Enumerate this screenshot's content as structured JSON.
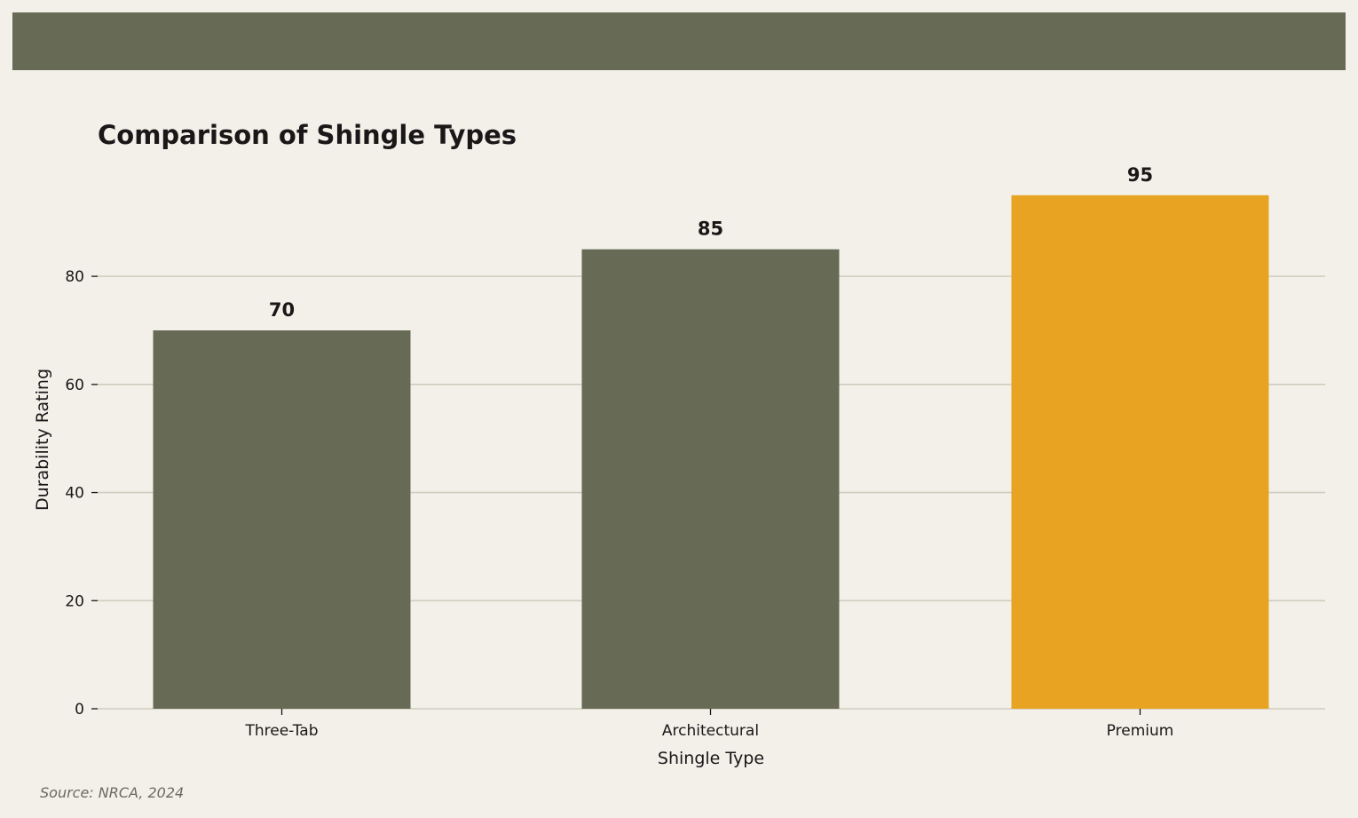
{
  "chart_data": {
    "type": "bar",
    "title": "Comparison of Shingle Types",
    "xlabel": "Shingle Type",
    "ylabel": "Durability Rating",
    "categories": [
      "Three-Tab",
      "Architectural",
      "Premium"
    ],
    "values": [
      70,
      85,
      95
    ],
    "data_labels": [
      "70",
      "85",
      "95"
    ],
    "bar_colors": [
      "#676a55",
      "#676a55",
      "#e8a323"
    ],
    "ylim": [
      0,
      95
    ],
    "yticks": [
      0,
      20,
      40,
      60,
      80
    ],
    "ytick_labels": [
      "0",
      "20",
      "40",
      "60",
      "80"
    ],
    "grid": "horizontal",
    "colors": {
      "background": "#f2f0e9",
      "band": "#676a55",
      "grid": "#cfcdbf",
      "text": "#1a1718"
    }
  },
  "source": "Source: NRCA, 2024"
}
